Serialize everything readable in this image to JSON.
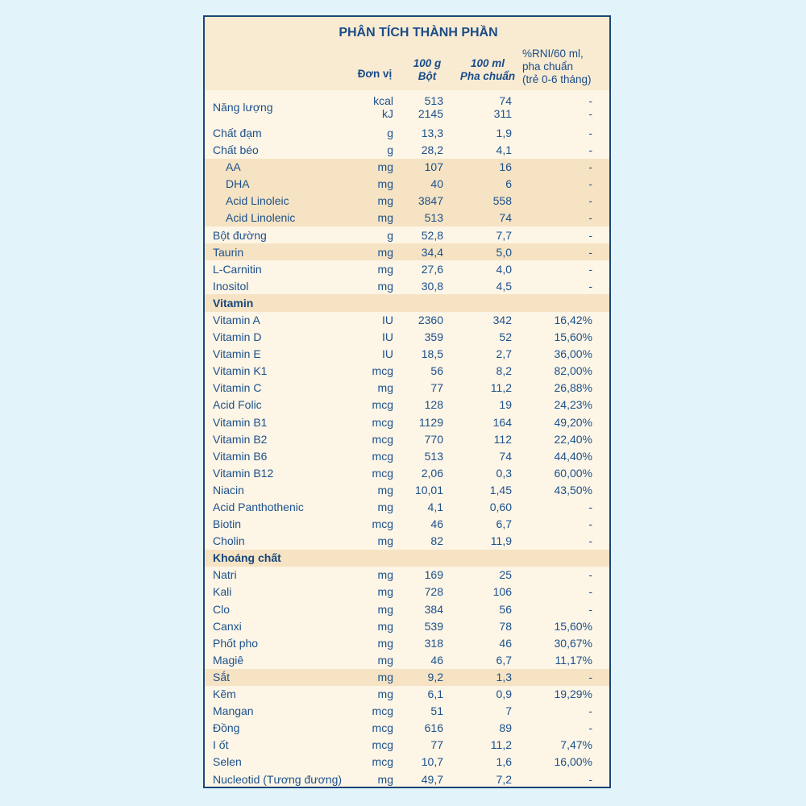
{
  "page": {
    "background_color": "#e2f4fa"
  },
  "colors": {
    "card_background": "#fdf5e6",
    "header_background": "#f8ebd2",
    "band_background": "#f6e3c3",
    "border": "#1d4577",
    "text": "#1c518c"
  },
  "table": {
    "title": "PHÂN TÍCH THÀNH PHẦN",
    "columns": {
      "unit": "Đơn vị",
      "per100g": [
        "100 g",
        "Bột"
      ],
      "per100ml": [
        "100 ml",
        "Pha chuẩn"
      ],
      "rni": [
        "%RNI/60 ml,",
        "pha chuẩn",
        "(trẻ 0-6 tháng)"
      ]
    },
    "rows": [
      {
        "label": "Năng lượng",
        "multi": true,
        "unit": [
          "kcal",
          "kJ"
        ],
        "per100g": [
          "513",
          "2145"
        ],
        "per100ml": [
          "74",
          "311"
        ],
        "rni": [
          "-",
          "-"
        ]
      },
      {
        "label": "Chất đạm",
        "unit": "g",
        "per100g": "13,3",
        "per100ml": "1,9",
        "rni": "-"
      },
      {
        "label": "Chất béo",
        "unit": "g",
        "per100g": "28,2",
        "per100ml": "4,1",
        "rni": "-"
      },
      {
        "label": "AA",
        "indent": true,
        "band": true,
        "unit": "mg",
        "per100g": "107",
        "per100ml": "16",
        "rni": "-"
      },
      {
        "label": "DHA",
        "indent": true,
        "band": true,
        "unit": "mg",
        "per100g": "40",
        "per100ml": "6",
        "rni": "-"
      },
      {
        "label": "Acid Linoleic",
        "indent": true,
        "band": true,
        "unit": "mg",
        "per100g": "3847",
        "per100ml": "558",
        "rni": "-"
      },
      {
        "label": "Acid Linolenic",
        "indent": true,
        "band": true,
        "unit": "mg",
        "per100g": "513",
        "per100ml": "74",
        "rni": "-"
      },
      {
        "label": "Bột đường",
        "unit": "g",
        "per100g": "52,8",
        "per100ml": "7,7",
        "rni": "-"
      },
      {
        "label": "Taurin",
        "band": true,
        "unit": "mg",
        "per100g": "34,4",
        "per100ml": "5,0",
        "rni": "-"
      },
      {
        "label": "L-Carnitin",
        "unit": "mg",
        "per100g": "27,6",
        "per100ml": "4,0",
        "rni": "-"
      },
      {
        "label": "Inositol",
        "unit": "mg",
        "per100g": "30,8",
        "per100ml": "4,5",
        "rni": "-"
      },
      {
        "label": "Vitamin",
        "section": true,
        "band": true,
        "unit": "",
        "per100g": "",
        "per100ml": "",
        "rni": ""
      },
      {
        "label": "Vitamin A",
        "unit": "IU",
        "per100g": "2360",
        "per100ml": "342",
        "rni": "16,42%"
      },
      {
        "label": "Vitamin D",
        "unit": "IU",
        "per100g": "359",
        "per100ml": "52",
        "rni": "15,60%"
      },
      {
        "label": "Vitamin E",
        "unit": "IU",
        "per100g": "18,5",
        "per100ml": "2,7",
        "rni": "36,00%"
      },
      {
        "label": "Vitamin K1",
        "unit": "mcg",
        "per100g": "56",
        "per100ml": "8,2",
        "rni": "82,00%"
      },
      {
        "label": "Vitamin C",
        "unit": "mg",
        "per100g": "77",
        "per100ml": "11,2",
        "rni": "26,88%"
      },
      {
        "label": "Acid Folic",
        "unit": "mcg",
        "per100g": "128",
        "per100ml": "19",
        "rni": "24,23%"
      },
      {
        "label": "Vitamin B1",
        "unit": "mcg",
        "per100g": "1129",
        "per100ml": "164",
        "rni": "49,20%"
      },
      {
        "label": "Vitamin B2",
        "unit": "mcg",
        "per100g": "770",
        "per100ml": "112",
        "rni": "22,40%"
      },
      {
        "label": "Vitamin B6",
        "unit": "mcg",
        "per100g": "513",
        "per100ml": "74",
        "rni": "44,40%"
      },
      {
        "label": "Vitamin B12",
        "unit": "mcg",
        "per100g": "2,06",
        "per100ml": "0,3",
        "rni": "60,00%"
      },
      {
        "label": "Niacin",
        "unit": "mg",
        "per100g": "10,01",
        "per100ml": "1,45",
        "rni": "43,50%"
      },
      {
        "label": "Acid Panthothenic",
        "unit": "mg",
        "per100g": "4,1",
        "per100ml": "0,60",
        "rni": "-"
      },
      {
        "label": "Biotin",
        "unit": "mcg",
        "per100g": "46",
        "per100ml": "6,7",
        "rni": "-"
      },
      {
        "label": "Cholin",
        "unit": "mg",
        "per100g": "82",
        "per100ml": "11,9",
        "rni": "-"
      },
      {
        "label": "Khoáng chất",
        "section": true,
        "band": true,
        "unit": "",
        "per100g": "",
        "per100ml": "",
        "rni": ""
      },
      {
        "label": "Natri",
        "unit": "mg",
        "per100g": "169",
        "per100ml": "25",
        "rni": "-"
      },
      {
        "label": "Kali",
        "unit": "mg",
        "per100g": "728",
        "per100ml": "106",
        "rni": "-"
      },
      {
        "label": "Clo",
        "unit": "mg",
        "per100g": "384",
        "per100ml": "56",
        "rni": "-"
      },
      {
        "label": "Canxi",
        "unit": "mg",
        "per100g": "539",
        "per100ml": "78",
        "rni": "15,60%"
      },
      {
        "label": "Phốt pho",
        "unit": "mg",
        "per100g": "318",
        "per100ml": "46",
        "rni": "30,67%"
      },
      {
        "label": "Magiê",
        "unit": "mg",
        "per100g": "46",
        "per100ml": "6,7",
        "rni": "11,17%"
      },
      {
        "label": "Sắt",
        "band": true,
        "unit": "mg",
        "per100g": "9,2",
        "per100ml": "1,3",
        "rni": "-"
      },
      {
        "label": "Kẽm",
        "unit": "mg",
        "per100g": "6,1",
        "per100ml": "0,9",
        "rni": "19,29%"
      },
      {
        "label": "Mangan",
        "unit": "mcg",
        "per100g": "51",
        "per100ml": "7",
        "rni": "-"
      },
      {
        "label": "Đồng",
        "unit": "mcg",
        "per100g": "616",
        "per100ml": "89",
        "rni": "-"
      },
      {
        "label": "I ốt",
        "unit": "mcg",
        "per100g": "77",
        "per100ml": "11,2",
        "rni": "7,47%"
      },
      {
        "label": "Selen",
        "unit": "mcg",
        "per100g": "10,7",
        "per100ml": "1,6",
        "rni": "16,00%"
      },
      {
        "label": "Nucleotid (Tương đương)",
        "unit": "mg",
        "per100g": "49,7",
        "per100ml": "7,2",
        "rni": "-"
      }
    ]
  }
}
